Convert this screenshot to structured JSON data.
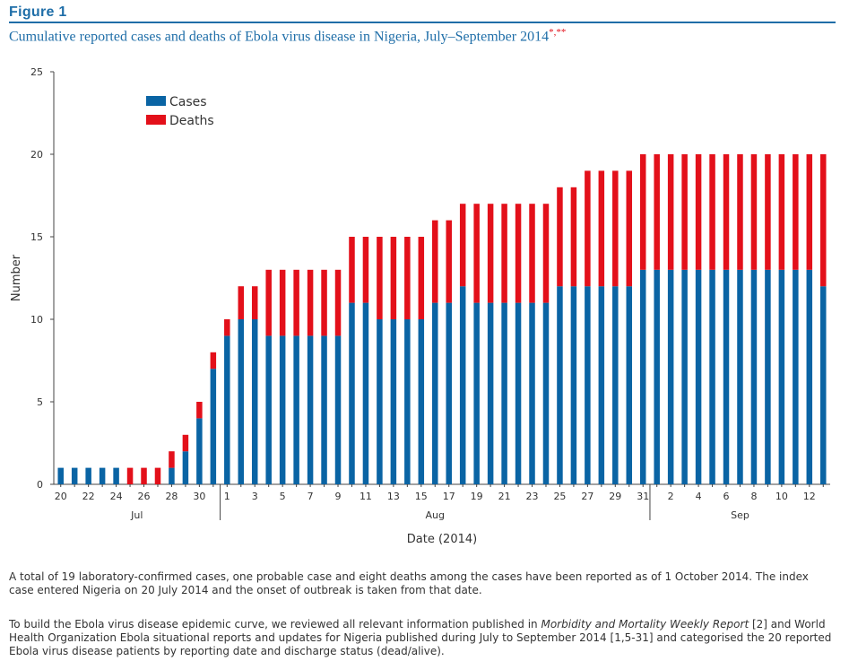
{
  "figure": {
    "label": "Figure 1",
    "title": "Cumulative reported cases and deaths of Ebola virus disease in Nigeria, July–September 2014",
    "title_marks": "*,**"
  },
  "colors": {
    "cases": "#0a64a4",
    "deaths": "#e3101a",
    "accent": "#1f6ea8"
  },
  "chart_data": {
    "type": "bar",
    "stacked": true,
    "ylabel": "Number",
    "xlabel": "Date (2014)",
    "ylim": [
      0,
      25
    ],
    "yticks": [
      0,
      5,
      10,
      15,
      20,
      25
    ],
    "grid": false,
    "legend_position": "top-left",
    "x": [
      "2014-07-20",
      "2014-07-21",
      "2014-07-22",
      "2014-07-23",
      "2014-07-24",
      "2014-07-25",
      "2014-07-26",
      "2014-07-27",
      "2014-07-28",
      "2014-07-29",
      "2014-07-30",
      "2014-07-31",
      "2014-08-01",
      "2014-08-02",
      "2014-08-03",
      "2014-08-04",
      "2014-08-05",
      "2014-08-06",
      "2014-08-07",
      "2014-08-08",
      "2014-08-09",
      "2014-08-10",
      "2014-08-11",
      "2014-08-12",
      "2014-08-13",
      "2014-08-14",
      "2014-08-15",
      "2014-08-16",
      "2014-08-17",
      "2014-08-18",
      "2014-08-19",
      "2014-08-20",
      "2014-08-21",
      "2014-08-22",
      "2014-08-23",
      "2014-08-24",
      "2014-08-25",
      "2014-08-26",
      "2014-08-27",
      "2014-08-28",
      "2014-08-29",
      "2014-08-30",
      "2014-08-31",
      "2014-09-01",
      "2014-09-02",
      "2014-09-03",
      "2014-09-04",
      "2014-09-05",
      "2014-09-06",
      "2014-09-07",
      "2014-09-08",
      "2014-09-09",
      "2014-09-10",
      "2014-09-11",
      "2014-09-12",
      "2014-09-13"
    ],
    "series": [
      {
        "name": "Cases",
        "values": [
          1,
          1,
          1,
          1,
          1,
          0,
          0,
          0,
          1,
          2,
          4,
          7,
          9,
          10,
          10,
          9,
          9,
          9,
          9,
          9,
          9,
          11,
          11,
          10,
          10,
          10,
          10,
          11,
          11,
          12,
          11,
          11,
          11,
          11,
          11,
          11,
          12,
          12,
          12,
          12,
          12,
          12,
          13,
          13,
          13,
          13,
          13,
          13,
          13,
          13,
          13,
          13,
          13,
          13,
          13,
          12
        ]
      },
      {
        "name": "Deaths",
        "values": [
          0,
          0,
          0,
          0,
          0,
          1,
          1,
          1,
          1,
          1,
          1,
          1,
          1,
          2,
          2,
          4,
          4,
          4,
          4,
          4,
          4,
          4,
          4,
          5,
          5,
          5,
          5,
          5,
          5,
          5,
          6,
          6,
          6,
          6,
          6,
          6,
          6,
          6,
          7,
          7,
          7,
          7,
          7,
          7,
          7,
          7,
          7,
          7,
          7,
          7,
          7,
          7,
          7,
          7,
          7,
          8
        ]
      }
    ],
    "tick_labels": [
      {
        "date": "2014-07-20",
        "label": "20"
      },
      {
        "date": "2014-07-22",
        "label": "22"
      },
      {
        "date": "2014-07-24",
        "label": "24"
      },
      {
        "date": "2014-07-26",
        "label": "26"
      },
      {
        "date": "2014-07-28",
        "label": "28"
      },
      {
        "date": "2014-07-30",
        "label": "30"
      },
      {
        "date": "2014-08-01",
        "label": "1"
      },
      {
        "date": "2014-08-03",
        "label": "3"
      },
      {
        "date": "2014-08-05",
        "label": "5"
      },
      {
        "date": "2014-08-07",
        "label": "7"
      },
      {
        "date": "2014-08-09",
        "label": "9"
      },
      {
        "date": "2014-08-11",
        "label": "11"
      },
      {
        "date": "2014-08-13",
        "label": "13"
      },
      {
        "date": "2014-08-15",
        "label": "15"
      },
      {
        "date": "2014-08-17",
        "label": "17"
      },
      {
        "date": "2014-08-19",
        "label": "19"
      },
      {
        "date": "2014-08-21",
        "label": "21"
      },
      {
        "date": "2014-08-23",
        "label": "23"
      },
      {
        "date": "2014-08-25",
        "label": "25"
      },
      {
        "date": "2014-08-27",
        "label": "27"
      },
      {
        "date": "2014-08-29",
        "label": "29"
      },
      {
        "date": "2014-08-31",
        "label": "31"
      },
      {
        "date": "2014-09-02",
        "label": "2"
      },
      {
        "date": "2014-09-04",
        "label": "4"
      },
      {
        "date": "2014-09-06",
        "label": "6"
      },
      {
        "date": "2014-09-08",
        "label": "8"
      },
      {
        "date": "2014-09-10",
        "label": "10"
      },
      {
        "date": "2014-09-12",
        "label": "12"
      }
    ],
    "month_groups": [
      {
        "label": "Jul",
        "first": "2014-07-20",
        "last": "2014-07-31"
      },
      {
        "label": "Aug",
        "first": "2014-08-01",
        "last": "2014-08-31"
      },
      {
        "label": "Sep",
        "first": "2014-09-01",
        "last": "2014-09-13"
      }
    ]
  },
  "captions": {
    "p1": "A total of 19 laboratory-confirmed cases, one probable case and eight deaths among the cases have been reported as of 1 October 2014.  The index case entered Nigeria on 20 July 2014 and the onset of outbreak is taken from that date.",
    "p2_before": "To build the Ebola virus disease epidemic curve, we reviewed all relevant information published in ",
    "p2_italic": "Morbidity and Mortality Weekly Report",
    "p2_after": " [2] and World Health Organization Ebola situational reports and updates for Nigeria published during July to September 2014 [1,5-31] and categorised the 20 reported Ebola virus disease patients by reporting date and discharge status (dead/alive)."
  }
}
